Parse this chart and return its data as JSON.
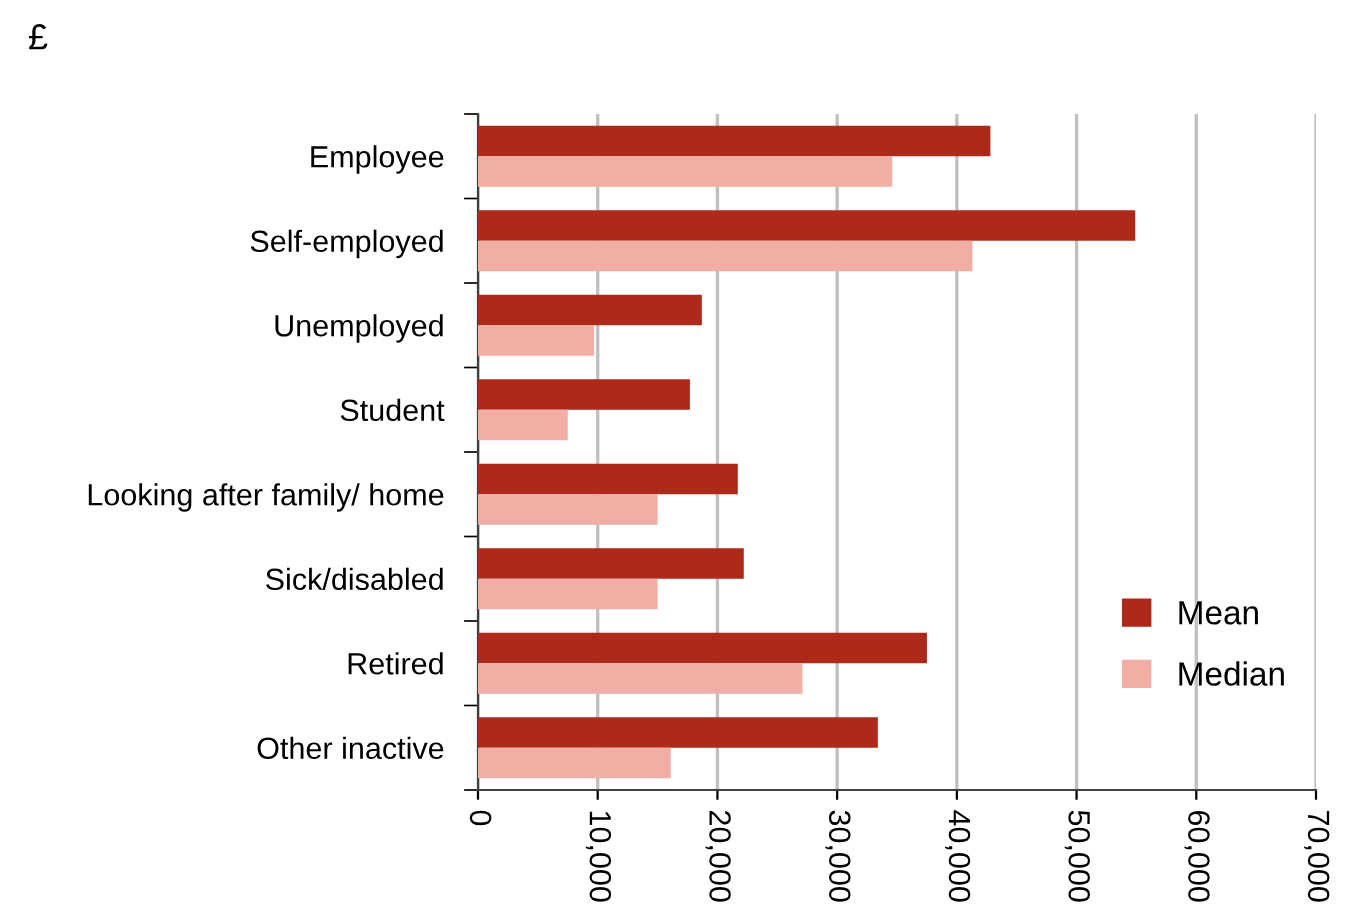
{
  "chart_data": {
    "type": "bar",
    "orientation": "horizontal",
    "categories": [
      "Employee",
      "Self-employed",
      "Unemployed",
      "Student",
      "Looking after family/ home",
      "Sick/disabled",
      "Retired",
      "Other inactive"
    ],
    "series": [
      {
        "name": "Mean",
        "color": "#ad2a1a",
        "values": [
          42800,
          54900,
          18700,
          17700,
          21700,
          22200,
          37500,
          33400
        ]
      },
      {
        "name": "Median",
        "color": "#f2ada5",
        "values": [
          34600,
          41300,
          9700,
          7500,
          15000,
          15000,
          27100,
          16100
        ]
      }
    ],
    "xlim": [
      0,
      70000
    ],
    "xticks": [
      0,
      {
        "value": 10000,
        "label": "10,000"
      },
      {
        "value": 20000,
        "label": "20,000"
      },
      {
        "value": 30000,
        "label": "30,000"
      },
      {
        "value": 40000,
        "label": "40,000"
      },
      {
        "value": 50000,
        "label": "50,000"
      },
      {
        "value": 60000,
        "label": "60,000"
      },
      {
        "value": 70000,
        "label": "70,000"
      }
    ],
    "annotations": [
      "£"
    ],
    "grid": "x",
    "legend": "bottom right"
  }
}
